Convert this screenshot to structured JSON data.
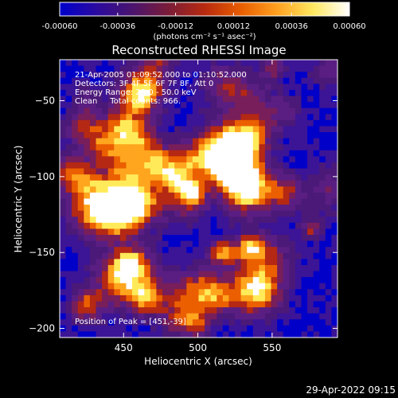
{
  "colorbar": {
    "tick_labels": [
      "-0.00060",
      "-0.00036",
      "-0.00012",
      "0.00012",
      "0.00036",
      "0.00060"
    ],
    "tick_values": [
      -0.0006,
      -0.00036,
      -0.00012,
      0.00012,
      0.00036,
      0.0006
    ],
    "range": [
      -0.0006,
      0.0006
    ],
    "units": "(photons cm⁻² s⁻¹ asec⁻²)",
    "colors": [
      "#0000cc",
      "#2a0aa0",
      "#4a146e",
      "#7a1c38",
      "#b82a10",
      "#e85d00",
      "#ffa020",
      "#ffe860",
      "#ffffff"
    ]
  },
  "chart_data": {
    "type": "heatmap",
    "title": "Reconstructed RHESSI Image",
    "xlabel": "Heliocentric X (arcsec)",
    "ylabel": "Heliocentric Y (arcsec)",
    "xlim": [
      407,
      594
    ],
    "ylim": [
      -206,
      -23
    ],
    "x_ticks": [
      450,
      500,
      550
    ],
    "y_ticks": [
      -50,
      -100,
      -150,
      -200
    ],
    "x_tick_labels": [
      "450",
      "500",
      "550"
    ],
    "y_tick_labels": [
      "−50",
      "−100",
      "−150",
      "−200"
    ],
    "annotations": {
      "time": "21-Apr-2005 01:09:52.000 to 01:10:52.000",
      "detectors": "Detectors: 3F 4F 5F 6F 7F 8F, Att 0",
      "energy": "Energy Range: 25.0 - 50.0 keV",
      "clean": "Clean     Total counts: 966.",
      "peak": "Position of Peak = [451,-39]"
    },
    "peak": [
      451,
      -39
    ],
    "grid": false
  },
  "footer": {
    "timestamp": "29-Apr-2022 09:15"
  }
}
